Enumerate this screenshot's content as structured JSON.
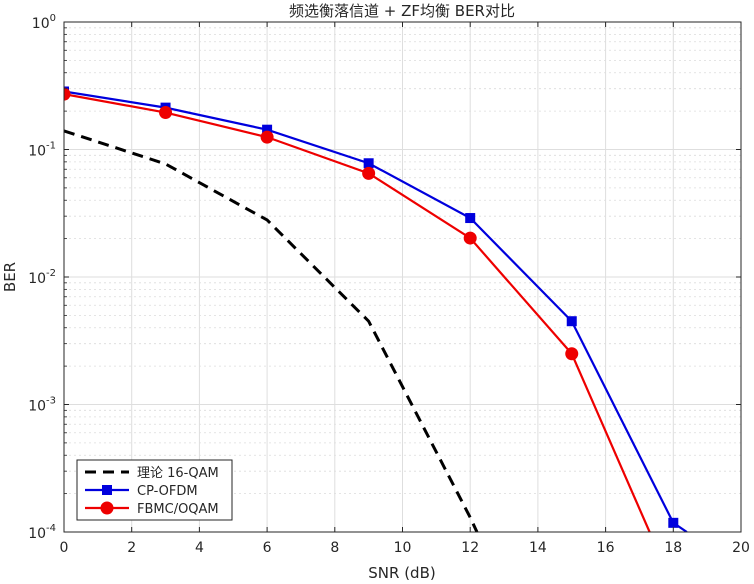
{
  "chart_data": {
    "type": "line",
    "title": "频选衡落信道 + ZF均衡 BER对比",
    "xlabel": "SNR (dB)",
    "ylabel": "BER",
    "xlim": [
      0,
      20
    ],
    "ylim": [
      0.0001,
      1
    ],
    "yscale": "log",
    "grid": true,
    "minor_grid": true,
    "legend_position": "bottom-left",
    "x_ticks": [
      0,
      2,
      4,
      6,
      8,
      10,
      12,
      14,
      16,
      18,
      20
    ],
    "x_tick_labels": [
      "0",
      "2",
      "4",
      "6",
      "8",
      "10",
      "12",
      "14",
      "16",
      "18",
      "20"
    ],
    "y_ticks": [
      {
        "value": 1,
        "base": "10",
        "exp": "0"
      },
      {
        "value": 0.1,
        "base": "10",
        "exp": "-1"
      },
      {
        "value": 0.01,
        "base": "10",
        "exp": "-2"
      },
      {
        "value": 0.001,
        "base": "10",
        "exp": "-3"
      },
      {
        "value": 0.0001,
        "base": "10",
        "exp": "-4"
      }
    ],
    "series": [
      {
        "name": "理论 16-QAM",
        "color": "#000000",
        "line_style": "dashed",
        "marker": "none",
        "x": [
          0,
          3,
          6,
          9,
          12,
          12.2
        ],
        "y": [
          0.14,
          0.077,
          0.028,
          0.0045,
          0.00013,
          0.0001
        ]
      },
      {
        "name": "CP-OFDM",
        "color": "#0000dd",
        "line_style": "solid",
        "marker": "square",
        "x": [
          0,
          3,
          6,
          9,
          12,
          15,
          18,
          18.4
        ],
        "y": [
          0.285,
          0.213,
          0.143,
          0.078,
          0.029,
          0.0045,
          0.000118,
          0.0001
        ]
      },
      {
        "name": "FBMC/OQAM",
        "color": "#ee0000",
        "line_style": "solid",
        "marker": "circle",
        "x": [
          0,
          3,
          6,
          9,
          12,
          15,
          17.3
        ],
        "y": [
          0.272,
          0.195,
          0.125,
          0.065,
          0.0202,
          0.0025,
          0.0001
        ]
      }
    ]
  }
}
